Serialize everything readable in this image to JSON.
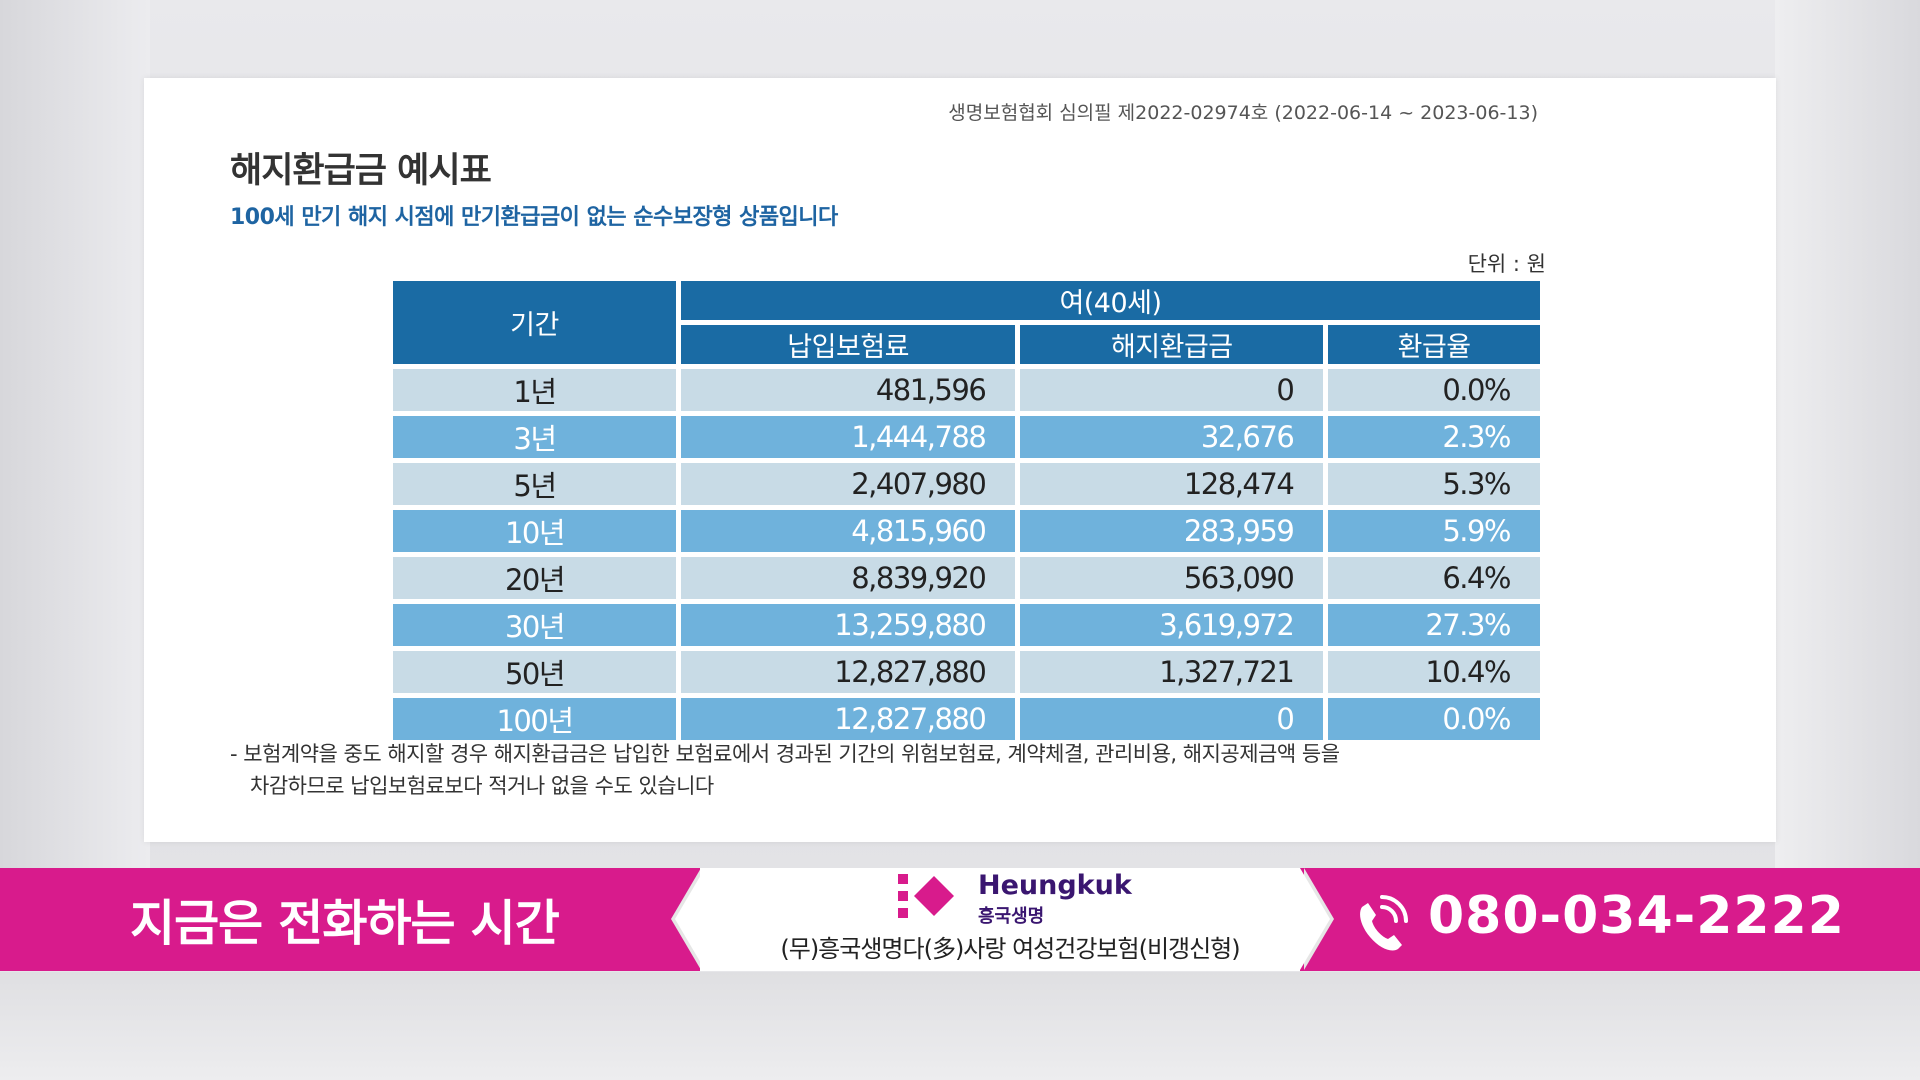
{
  "approval": "생명보험협회 심의필 제2022-02974호 (2022-06-14 ~ 2023-06-13)",
  "title": "해지환급금 예시표",
  "subtitle": "100세 만기 해지 시점에 만기환급금이 없는 순수보장형 상품입니다",
  "unit": "단위 : 원",
  "table": {
    "period_header": "기간",
    "group_header": "여(40세)",
    "columns": [
      "납입보험료",
      "해지환급금",
      "환급율"
    ],
    "rows": [
      {
        "period": "1년",
        "premium": "481,596",
        "refund": "0",
        "rate": "0.0%"
      },
      {
        "period": "3년",
        "premium": "1,444,788",
        "refund": "32,676",
        "rate": "2.3%"
      },
      {
        "period": "5년",
        "premium": "2,407,980",
        "refund": "128,474",
        "rate": "5.3%"
      },
      {
        "period": "10년",
        "premium": "4,815,960",
        "refund": "283,959",
        "rate": "5.9%"
      },
      {
        "period": "20년",
        "premium": "8,839,920",
        "refund": "563,090",
        "rate": "6.4%"
      },
      {
        "period": "30년",
        "premium": "13,259,880",
        "refund": "3,619,972",
        "rate": "27.3%"
      },
      {
        "period": "50년",
        "premium": "12,827,880",
        "refund": "1,327,721",
        "rate": "10.4%"
      },
      {
        "period": "100년",
        "premium": "12,827,880",
        "refund": "0",
        "rate": "0.0%"
      }
    ]
  },
  "note_line1": "- 보험계약을 중도 해지할 경우 해지환급금은 납입한 보험료에서 경과된 기간의 위험보험료, 계약체결, 관리비용, 해지공제금액 등을",
  "note_line2": "차감하므로 납입보험료보다 적거나 없을 수도 있습니다",
  "banner": {
    "slogan": "지금은 전화하는 시간",
    "brand_en": "Heungkuk",
    "brand_ko": "흥국생명",
    "product": "(무)흥국생명다(多)사랑 여성건강보험(비갱신형)",
    "phone": "080-034-2222",
    "colors": {
      "banner": "#d81b8c",
      "brand": "#3a1670",
      "table_header": "#1a6ba4"
    },
    "icons": [
      "heungkuk-logo-icon",
      "phone-icon"
    ]
  }
}
